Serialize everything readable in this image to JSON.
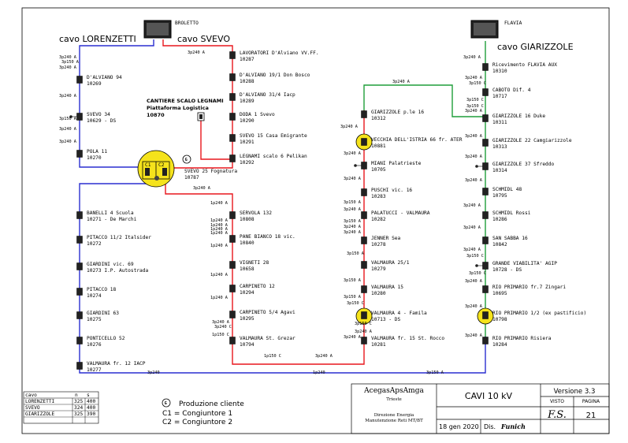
{
  "colors": {
    "red": "#e8171d",
    "blue": "#2a2fd0",
    "green": "#1f9e3a",
    "yellow": "#f5e31c"
  },
  "sources": [
    {
      "label": "BROLETTO"
    },
    {
      "label": "FLAVIA"
    }
  ],
  "cables": [
    "cavo LORENZETTI",
    "cavo SVEVO",
    "cavo GIARIZZOLE"
  ],
  "blue_left": [
    {
      "name": "D'ALVIANO 94",
      "code": "10269"
    },
    {
      "name": "SVEVO 34",
      "code": "10629 - DS"
    },
    {
      "name": "POLA 11",
      "code": "10270"
    }
  ],
  "red_upper": [
    {
      "name": "LAVORATORI D'Alviano VV.FF.",
      "code": "10287"
    },
    {
      "name": "D'ALVIANO 19/1 Don Bosco",
      "code": "10288"
    },
    {
      "name": "D'ALVIANO 31/4 Iacp",
      "code": "10289"
    },
    {
      "name": "DODA 1 Svevo",
      "code": "10290"
    },
    {
      "name": "SVEVO 15 Casa Emigrante",
      "code": "10291"
    },
    {
      "name": "LEGNAMI scalo 6 Pelikan",
      "code": "10292"
    }
  ],
  "cantiere": {
    "line1": "CANTIERE SCALO LEGNAMI",
    "line2": "Piattaforma Logistica",
    "line3": "10870"
  },
  "svevo25": {
    "name": "SVEVO 25 Fognatura",
    "code": "10787",
    "c1": "C1",
    "c2": "C2",
    "g": "G"
  },
  "blue_lower": [
    {
      "name": "BANELLI 4  Scuola",
      "code": "10271 -   De Marchi"
    },
    {
      "name": "PITACCO 11/2 Italsider",
      "code": "10272"
    },
    {
      "name": "GIARDINI vic. 69",
      "code": "10273    I.P. Autostrada"
    },
    {
      "name": "PITACCO 18",
      "code": "10274"
    },
    {
      "name": "GIARDINI 63",
      "code": "10275"
    },
    {
      "name": "PONTICELLO 52",
      "code": "10276"
    },
    {
      "name": "VALMAURA fr. 12 IACP",
      "code": "10277"
    }
  ],
  "red_lower": [
    {
      "name": "SERVOLA 132",
      "code": "10808"
    },
    {
      "name": "PANE BIANCO 18 vic.",
      "code": "10840"
    },
    {
      "name": "VIGNETI 28",
      "code": "10658"
    },
    {
      "name": "CARPINETO 12",
      "code": "10294"
    },
    {
      "name": "CARPINETO 5/4  Agavi",
      "code": "10295"
    },
    {
      "name": "VALMAURA  St. Grezar",
      "code": "10794"
    }
  ],
  "middle": [
    {
      "name": "GIARIZZOLE p.le 16",
      "code": "10312"
    },
    {
      "name": "VECCHIA DELL'ISTRIA 66 fr. ATER",
      "code": "10881"
    },
    {
      "name": "MIANI Palatrieste",
      "code": "10705"
    },
    {
      "name": "PUSCHI vic. 16",
      "code": "10283"
    },
    {
      "name": "PALATUCCI - VALMAURA",
      "code": "10282"
    },
    {
      "name": "JENNER Sea",
      "code": "10278"
    },
    {
      "name": "VALMAURA 25/1",
      "code": "10279"
    },
    {
      "name": "VALMAURA 15",
      "code": "10280"
    },
    {
      "name": "VALMAURA 4 -  Famila",
      "code": "10713 - DS"
    },
    {
      "name": "VALMAURA fr. 15 St. Rocco",
      "code": "10281"
    }
  ],
  "right": [
    {
      "name": "Ricevimento FLAVIA AUX",
      "code": "10310"
    },
    {
      "name": "CABOTO Dif. 4",
      "code": "10717"
    },
    {
      "name": "GIARIZZOLE  16 Duke",
      "code": "10311"
    },
    {
      "name": "GIARIZZOLE 22 Camgiarizzole",
      "code": "10313"
    },
    {
      "name": "GIARIZZOLE   37 Sfreddo",
      "code": "10314"
    },
    {
      "name": "SCHMIDL 48",
      "code": "10795"
    },
    {
      "name": "SCHMIDL Rossi",
      "code": "10286"
    },
    {
      "name": "SAN SABBA 16",
      "code": "10842"
    },
    {
      "name": "GRANDE VIABILITA' AGIP",
      "code": "10728 - DS"
    },
    {
      "name": "RIO PRIMARIO fr.7 Zingari",
      "code": "10695"
    },
    {
      "name": "RIO PRIMARIO 1/2 (ex pastificio)",
      "code": "10798"
    },
    {
      "name": "RIO PRIMARIO Risiera",
      "code": "10284"
    }
  ],
  "cable_specs": {
    "p240a": "3p240 A",
    "p150a": "3p150 A",
    "p150c": "3p150 C",
    "p240c": "3p240 C",
    "p150": "3p150",
    "p240": "3p240",
    "onep240": "1p240 A",
    "onep150c": "1p150 C",
    "onep240c": "1p240 C",
    "onep150a": "1p150 A",
    "onep240plain": "1p240"
  },
  "legend": {
    "head": {
      "name": "cavo",
      "n": "n",
      "s": "s"
    },
    "rows": [
      {
        "name": "LORENZETTI",
        "n": "325",
        "s": "400"
      },
      {
        "name": "SVEVO",
        "n": "324",
        "s": "400"
      },
      {
        "name": "GIARIZZOLE",
        "n": "325",
        "s": "390"
      }
    ],
    "g": "G",
    "g_text": "Produzione cliente",
    "c1_text": "C1  =  Congiuntore 1",
    "c2_text": "C2  =  Congiuntore 2"
  },
  "titleblock": {
    "company": "AcegasApsAmga",
    "city": "Trieste",
    "dept1": "Direzione Energia",
    "dept2": "Manutenzione Reti MT/BT",
    "title": "CAVI  10 kV",
    "date": "18 gen 2020",
    "dis_label": "Dis.",
    "dis_sig": "Funich",
    "version": "Versione 3.3",
    "visto_label": "VISTO",
    "visto_sig": "F.S.",
    "pagina_label": "PAGINA",
    "pagina": "21"
  }
}
